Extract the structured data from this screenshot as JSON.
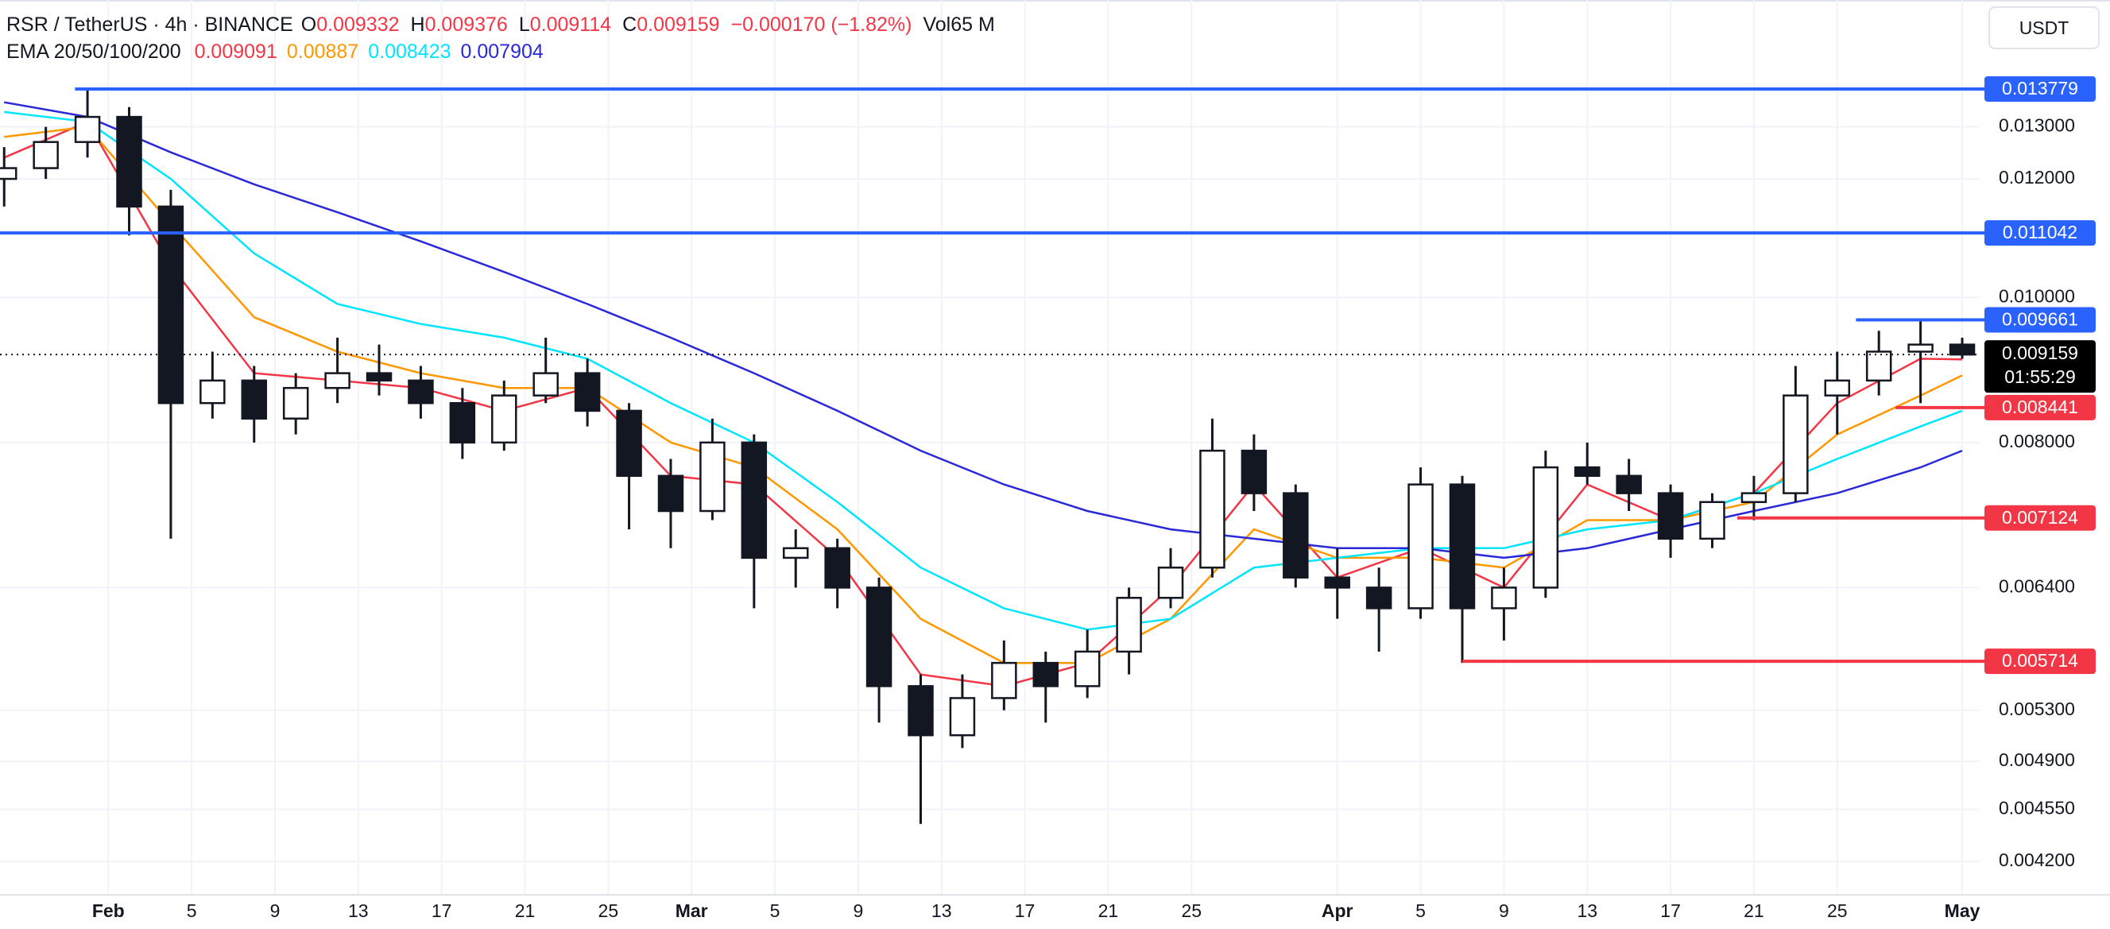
{
  "header": {
    "symbol": "RSR / TetherUS · 4h · BINANCE",
    "ohlc": [
      {
        "label": "O",
        "value": 0.009332
      },
      {
        "label": "H",
        "value": 0.009376
      },
      {
        "label": "L",
        "value": 0.009114
      },
      {
        "label": "C",
        "value": 0.009159
      }
    ],
    "change": "−0.000170 (−1.82%)",
    "volume_label": "Vol",
    "volume": "65 M",
    "indicator": "EMA 20/50/100/200",
    "ema_values": [
      0.009091,
      0.00887,
      0.008423,
      0.007904
    ]
  },
  "currency_button": "USDT",
  "chart_data": {
    "type": "candlestick",
    "log_scale": true,
    "grid": true,
    "xlim": [
      -5.2,
      89.8
    ],
    "xticks": [
      {
        "value": 0,
        "label": "Feb"
      },
      {
        "value": 4,
        "label": "5"
      },
      {
        "value": 8,
        "label": "9"
      },
      {
        "value": 12,
        "label": "13"
      },
      {
        "value": 16,
        "label": "17"
      },
      {
        "value": 20,
        "label": "21"
      },
      {
        "value": 24,
        "label": "25"
      },
      {
        "value": 28,
        "label": "Mar"
      },
      {
        "value": 32,
        "label": "5"
      },
      {
        "value": 36,
        "label": "9"
      },
      {
        "value": 40,
        "label": "13"
      },
      {
        "value": 44,
        "label": "17"
      },
      {
        "value": 48,
        "label": "21"
      },
      {
        "value": 52,
        "label": "25"
      },
      {
        "value": 59,
        "label": "Apr"
      },
      {
        "value": 63,
        "label": "5"
      },
      {
        "value": 67,
        "label": "9"
      },
      {
        "value": 71,
        "label": "13"
      },
      {
        "value": 75,
        "label": "17"
      },
      {
        "value": 79,
        "label": "21"
      },
      {
        "value": 83,
        "label": "25"
      },
      {
        "value": 89,
        "label": "May"
      }
    ],
    "ylim": [
      0.00399,
      0.0158
    ],
    "yticks": [
      {
        "value": 0.013,
        "label": "0.013000"
      },
      {
        "value": 0.012,
        "label": "0.012000"
      },
      {
        "value": 0.01,
        "label": "0.010000"
      },
      {
        "value": 0.008,
        "label": "0.008000"
      },
      {
        "value": 0.0064,
        "label": "0.006400"
      },
      {
        "value": 0.0053,
        "label": "0.005300"
      },
      {
        "value": 0.0049,
        "label": "0.004900"
      },
      {
        "value": 0.00455,
        "label": "0.004550"
      },
      {
        "value": 0.0042,
        "label": "0.004200"
      }
    ],
    "candle_color": "#131722",
    "x": [
      -5,
      -3,
      -1,
      1,
      3,
      5,
      7,
      9,
      11,
      13,
      15,
      17,
      19,
      21,
      23,
      25,
      27,
      29,
      31,
      33,
      35,
      37,
      39,
      41,
      43,
      45,
      47,
      49,
      51,
      53,
      55,
      57,
      59,
      61,
      63,
      65,
      67,
      69,
      71,
      73,
      75,
      77,
      79,
      81,
      83,
      85,
      87,
      89
    ],
    "open": [
      0.012,
      0.0122,
      0.0127,
      0.0132,
      0.0115,
      0.0085,
      0.0088,
      0.0083,
      0.0087,
      0.0089,
      0.0088,
      0.0085,
      0.008,
      0.0086,
      0.0089,
      0.0084,
      0.0076,
      0.0072,
      0.008,
      0.0067,
      0.0068,
      0.0064,
      0.0055,
      0.0051,
      0.0054,
      0.0057,
      0.0055,
      0.0058,
      0.0063,
      0.0066,
      0.0079,
      0.0074,
      0.0065,
      0.0064,
      0.0062,
      0.0075,
      0.0062,
      0.0064,
      0.0077,
      0.0076,
      0.0074,
      0.0069,
      0.0073,
      0.0074,
      0.0086,
      0.0088,
      0.0092,
      0.0093
    ],
    "high": [
      0.0126,
      0.013,
      0.01378,
      0.0134,
      0.0118,
      0.0092,
      0.009,
      0.0089,
      0.0094,
      0.0093,
      0.009,
      0.0087,
      0.0088,
      0.0094,
      0.0091,
      0.0085,
      0.0078,
      0.0083,
      0.0081,
      0.007,
      0.0069,
      0.0065,
      0.0056,
      0.0056,
      0.0059,
      0.0058,
      0.006,
      0.0064,
      0.0068,
      0.0083,
      0.0081,
      0.0075,
      0.0068,
      0.0066,
      0.0077,
      0.0076,
      0.0066,
      0.0079,
      0.008,
      0.0078,
      0.0075,
      0.0074,
      0.0076,
      0.009,
      0.0092,
      0.0095,
      0.00966,
      0.0094
    ],
    "low": [
      0.0115,
      0.012,
      0.0124,
      0.011,
      0.0069,
      0.0083,
      0.008,
      0.0081,
      0.0085,
      0.0086,
      0.0083,
      0.0078,
      0.0079,
      0.0085,
      0.0082,
      0.007,
      0.0068,
      0.0071,
      0.0062,
      0.0064,
      0.0062,
      0.0052,
      0.00445,
      0.005,
      0.0053,
      0.0052,
      0.0054,
      0.0056,
      0.0062,
      0.0065,
      0.0072,
      0.0064,
      0.0061,
      0.0058,
      0.0061,
      0.0057,
      0.0059,
      0.0063,
      0.0075,
      0.0072,
      0.0067,
      0.0068,
      0.0071,
      0.0073,
      0.0081,
      0.0086,
      0.0085,
      0.0091
    ],
    "close": [
      0.0122,
      0.0127,
      0.0132,
      0.0115,
      0.0085,
      0.0088,
      0.0083,
      0.0087,
      0.0089,
      0.0088,
      0.0085,
      0.008,
      0.0086,
      0.0089,
      0.0084,
      0.0076,
      0.0072,
      0.008,
      0.0067,
      0.0068,
      0.0064,
      0.0055,
      0.0051,
      0.0054,
      0.0057,
      0.0055,
      0.0058,
      0.0063,
      0.0066,
      0.0079,
      0.0074,
      0.0065,
      0.0064,
      0.0062,
      0.0075,
      0.0062,
      0.0064,
      0.0077,
      0.0076,
      0.0074,
      0.0069,
      0.0073,
      0.0074,
      0.0086,
      0.0088,
      0.0092,
      0.0093,
      0.009159
    ],
    "series": [
      {
        "color": "#f23645",
        "x": [
          -5,
          -1,
          3,
          7,
          11,
          15,
          19,
          23,
          27,
          31,
          35,
          39,
          43,
          47,
          51,
          55,
          59,
          63,
          67,
          71,
          75,
          79,
          83,
          87,
          89
        ],
        "values": [
          0.0124,
          0.0131,
          0.0105,
          0.0089,
          0.0088,
          0.0087,
          0.0084,
          0.0087,
          0.0076,
          0.0075,
          0.0067,
          0.0056,
          0.0055,
          0.0057,
          0.0064,
          0.0075,
          0.0065,
          0.0068,
          0.0064,
          0.0075,
          0.0071,
          0.0074,
          0.0085,
          0.0091,
          0.00909
        ]
      },
      {
        "color": "#ff9800",
        "x": [
          -5,
          -1,
          3,
          7,
          11,
          15,
          19,
          23,
          27,
          31,
          35,
          39,
          43,
          47,
          51,
          55,
          59,
          63,
          67,
          71,
          75,
          79,
          83,
          87,
          89
        ],
        "values": [
          0.0128,
          0.013,
          0.0112,
          0.0097,
          0.0092,
          0.0089,
          0.0087,
          0.0087,
          0.008,
          0.0077,
          0.007,
          0.0061,
          0.0057,
          0.0057,
          0.0061,
          0.007,
          0.0067,
          0.0067,
          0.0066,
          0.0071,
          0.0071,
          0.0073,
          0.0081,
          0.0086,
          0.00887
        ]
      },
      {
        "color": "#00e5ff",
        "x": [
          -5,
          -1,
          3,
          7,
          11,
          15,
          19,
          23,
          27,
          31,
          35,
          39,
          43,
          47,
          51,
          55,
          59,
          63,
          67,
          71,
          75,
          79,
          83,
          87,
          89
        ],
        "values": [
          0.0133,
          0.0131,
          0.012,
          0.0107,
          0.0099,
          0.0096,
          0.0094,
          0.0091,
          0.0085,
          0.008,
          0.0073,
          0.0066,
          0.0062,
          0.006,
          0.0061,
          0.0066,
          0.0067,
          0.0068,
          0.0068,
          0.007,
          0.0071,
          0.0074,
          0.0078,
          0.0082,
          0.0084
        ]
      },
      {
        "color": "#2929d9",
        "x": [
          -5,
          -1,
          3,
          7,
          11,
          15,
          19,
          23,
          27,
          31,
          35,
          39,
          43,
          47,
          51,
          55,
          59,
          63,
          67,
          71,
          75,
          79,
          83,
          87,
          89
        ],
        "values": [
          0.0135,
          0.0132,
          0.0125,
          0.0119,
          0.0114,
          0.0109,
          0.0104,
          0.0099,
          0.0094,
          0.0089,
          0.0084,
          0.0079,
          0.0075,
          0.0072,
          0.007,
          0.0069,
          0.0068,
          0.0068,
          0.0067,
          0.0068,
          0.007,
          0.0072,
          0.0074,
          0.0077,
          0.0079
        ]
      }
    ],
    "levels": [
      {
        "value": 0.013779,
        "color": "#2962ff",
        "start_x": -1.6
      },
      {
        "value": 0.011042,
        "color": "#2962ff",
        "start_x": -5.2
      },
      {
        "value": 0.009661,
        "color": "#2962ff",
        "start_x": 83.9
      },
      {
        "value": 0.008441,
        "color": "#f23645",
        "start_x": 85.8
      },
      {
        "value": 0.007124,
        "color": "#f23645",
        "start_x": 78.2
      },
      {
        "value": 0.005714,
        "color": "#f23645",
        "start_x": 65
      }
    ],
    "last_price": 0.009159,
    "countdown": "01:55:29"
  }
}
